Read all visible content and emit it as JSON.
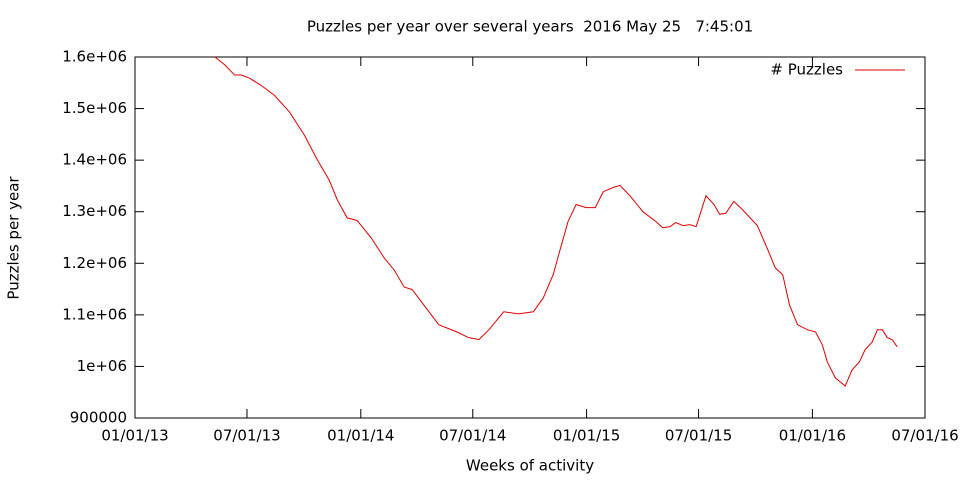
{
  "chart_data": {
    "type": "line",
    "title": "Puzzles per year over several years  2016 May 25   7:45:01",
    "x_label": "Weeks of activity",
    "y_label": "Puzzles per year",
    "legend": "top-right",
    "xlim": [
      "2013-01-01",
      "2016-07-01"
    ],
    "xticks": [
      {
        "value": "2013-01-01",
        "label": "01/01/13"
      },
      {
        "value": "2013-07-01",
        "label": "07/01/13"
      },
      {
        "value": "2014-01-01",
        "label": "01/01/14"
      },
      {
        "value": "2014-07-01",
        "label": "07/01/14"
      },
      {
        "value": "2015-01-01",
        "label": "01/01/15"
      },
      {
        "value": "2015-07-01",
        "label": "07/01/15"
      },
      {
        "value": "2016-01-01",
        "label": "01/01/16"
      },
      {
        "value": "2016-07-01",
        "label": "07/01/16"
      }
    ],
    "ylim": [
      900000,
      1600000
    ],
    "yticks": [
      900000,
      {
        "value": 1000000,
        "label": "1e+06"
      },
      {
        "value": 1100000,
        "label": "1.1e+06"
      },
      {
        "value": 1200000,
        "label": "1.2e+06"
      },
      {
        "value": 1300000,
        "label": "1.3e+06"
      },
      {
        "value": 1400000,
        "label": "1.4e+06"
      },
      {
        "value": 1500000,
        "label": "1.5e+06"
      },
      {
        "value": 1600000,
        "label": "1.6e+06"
      }
    ],
    "x": [
      "2013-05-10",
      "2013-05-26",
      "2013-06-11",
      "2013-06-22",
      "2013-07-05",
      "2013-07-25",
      "2013-08-14",
      "2013-09-08",
      "2013-10-02",
      "2013-10-23",
      "2013-11-11",
      "2013-11-24",
      "2013-12-10",
      "2013-12-26",
      "2014-01-18",
      "2014-02-08",
      "2014-02-24",
      "2014-03-12",
      "2014-03-25",
      "2014-04-13",
      "2014-05-07",
      "2014-06-05",
      "2014-06-24",
      "2014-07-11",
      "2014-07-27",
      "2014-08-20",
      "2014-09-13",
      "2014-10-07",
      "2014-10-23",
      "2014-11-08",
      "2014-11-20",
      "2014-12-02",
      "2014-12-15",
      "2014-12-31",
      "2015-01-15",
      "2015-01-28",
      "2015-02-13",
      "2015-02-24",
      "2015-03-12",
      "2015-04-02",
      "2015-04-23",
      "2015-05-04",
      "2015-05-16",
      "2015-05-25",
      "2015-06-06",
      "2015-06-17",
      "2015-06-27",
      "2015-07-13",
      "2015-07-26",
      "2015-08-04",
      "2015-08-14",
      "2015-08-27",
      "2015-09-10",
      "2015-10-04",
      "2015-10-21",
      "2015-11-02",
      "2015-11-14",
      "2015-11-25",
      "2015-12-08",
      "2015-12-24",
      "2016-01-06",
      "2016-01-17",
      "2016-01-25",
      "2016-02-07",
      "2016-02-23",
      "2016-03-05",
      "2016-03-17",
      "2016-03-26",
      "2016-04-07",
      "2016-04-15",
      "2016-04-23",
      "2016-05-01",
      "2016-05-09",
      "2016-05-17"
    ],
    "series": [
      {
        "name": "# Puzzles",
        "color": "#e00000",
        "values": [
          1600000,
          1585000,
          1565000,
          1565000,
          1559000,
          1544000,
          1526000,
          1493000,
          1448000,
          1400000,
          1361000,
          1323000,
          1288000,
          1283000,
          1249000,
          1210000,
          1187000,
          1154000,
          1149000,
          1119000,
          1081000,
          1067000,
          1056000,
          1052000,
          1071000,
          1106000,
          1102000,
          1106000,
          1133000,
          1178000,
          1230000,
          1281000,
          1314000,
          1308000,
          1308000,
          1339000,
          1347000,
          1351000,
          1331000,
          1300000,
          1281000,
          1269000,
          1271000,
          1279000,
          1273000,
          1275000,
          1271000,
          1331000,
          1314000,
          1295000,
          1297000,
          1320000,
          1304000,
          1273000,
          1226000,
          1191000,
          1178000,
          1119000,
          1081000,
          1071000,
          1067000,
          1042000,
          1009000,
          978000,
          962000,
          993000,
          1009000,
          1032000,
          1048000,
          1071000,
          1071000,
          1056000,
          1052000,
          1038000
        ]
      }
    ]
  }
}
